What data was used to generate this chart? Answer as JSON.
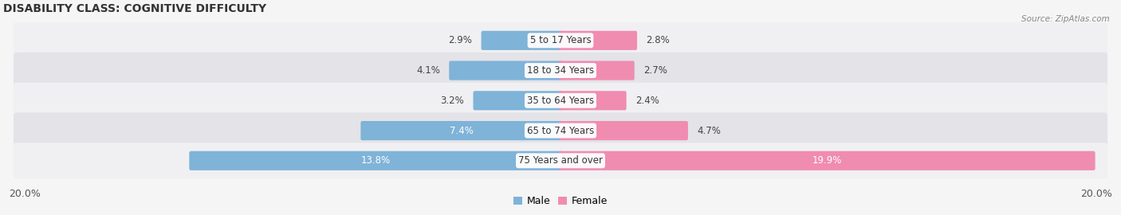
{
  "title": "DISABILITY CLASS: COGNITIVE DIFFICULTY",
  "source": "Source: ZipAtlas.com",
  "categories": [
    "5 to 17 Years",
    "18 to 34 Years",
    "35 to 64 Years",
    "65 to 74 Years",
    "75 Years and over"
  ],
  "male_values": [
    2.9,
    4.1,
    3.2,
    7.4,
    13.8
  ],
  "female_values": [
    2.8,
    2.7,
    2.4,
    4.7,
    19.9
  ],
  "x_max": 20.0,
  "male_color": "#7fb3d8",
  "female_color": "#f08cb0",
  "row_bg_light": "#f0f0f2",
  "row_bg_dark": "#e3e3e8",
  "title_fontsize": 10,
  "label_fontsize": 8.5,
  "axis_label_fontsize": 9,
  "category_fontsize": 8.5,
  "inside_label_threshold": 6.0
}
